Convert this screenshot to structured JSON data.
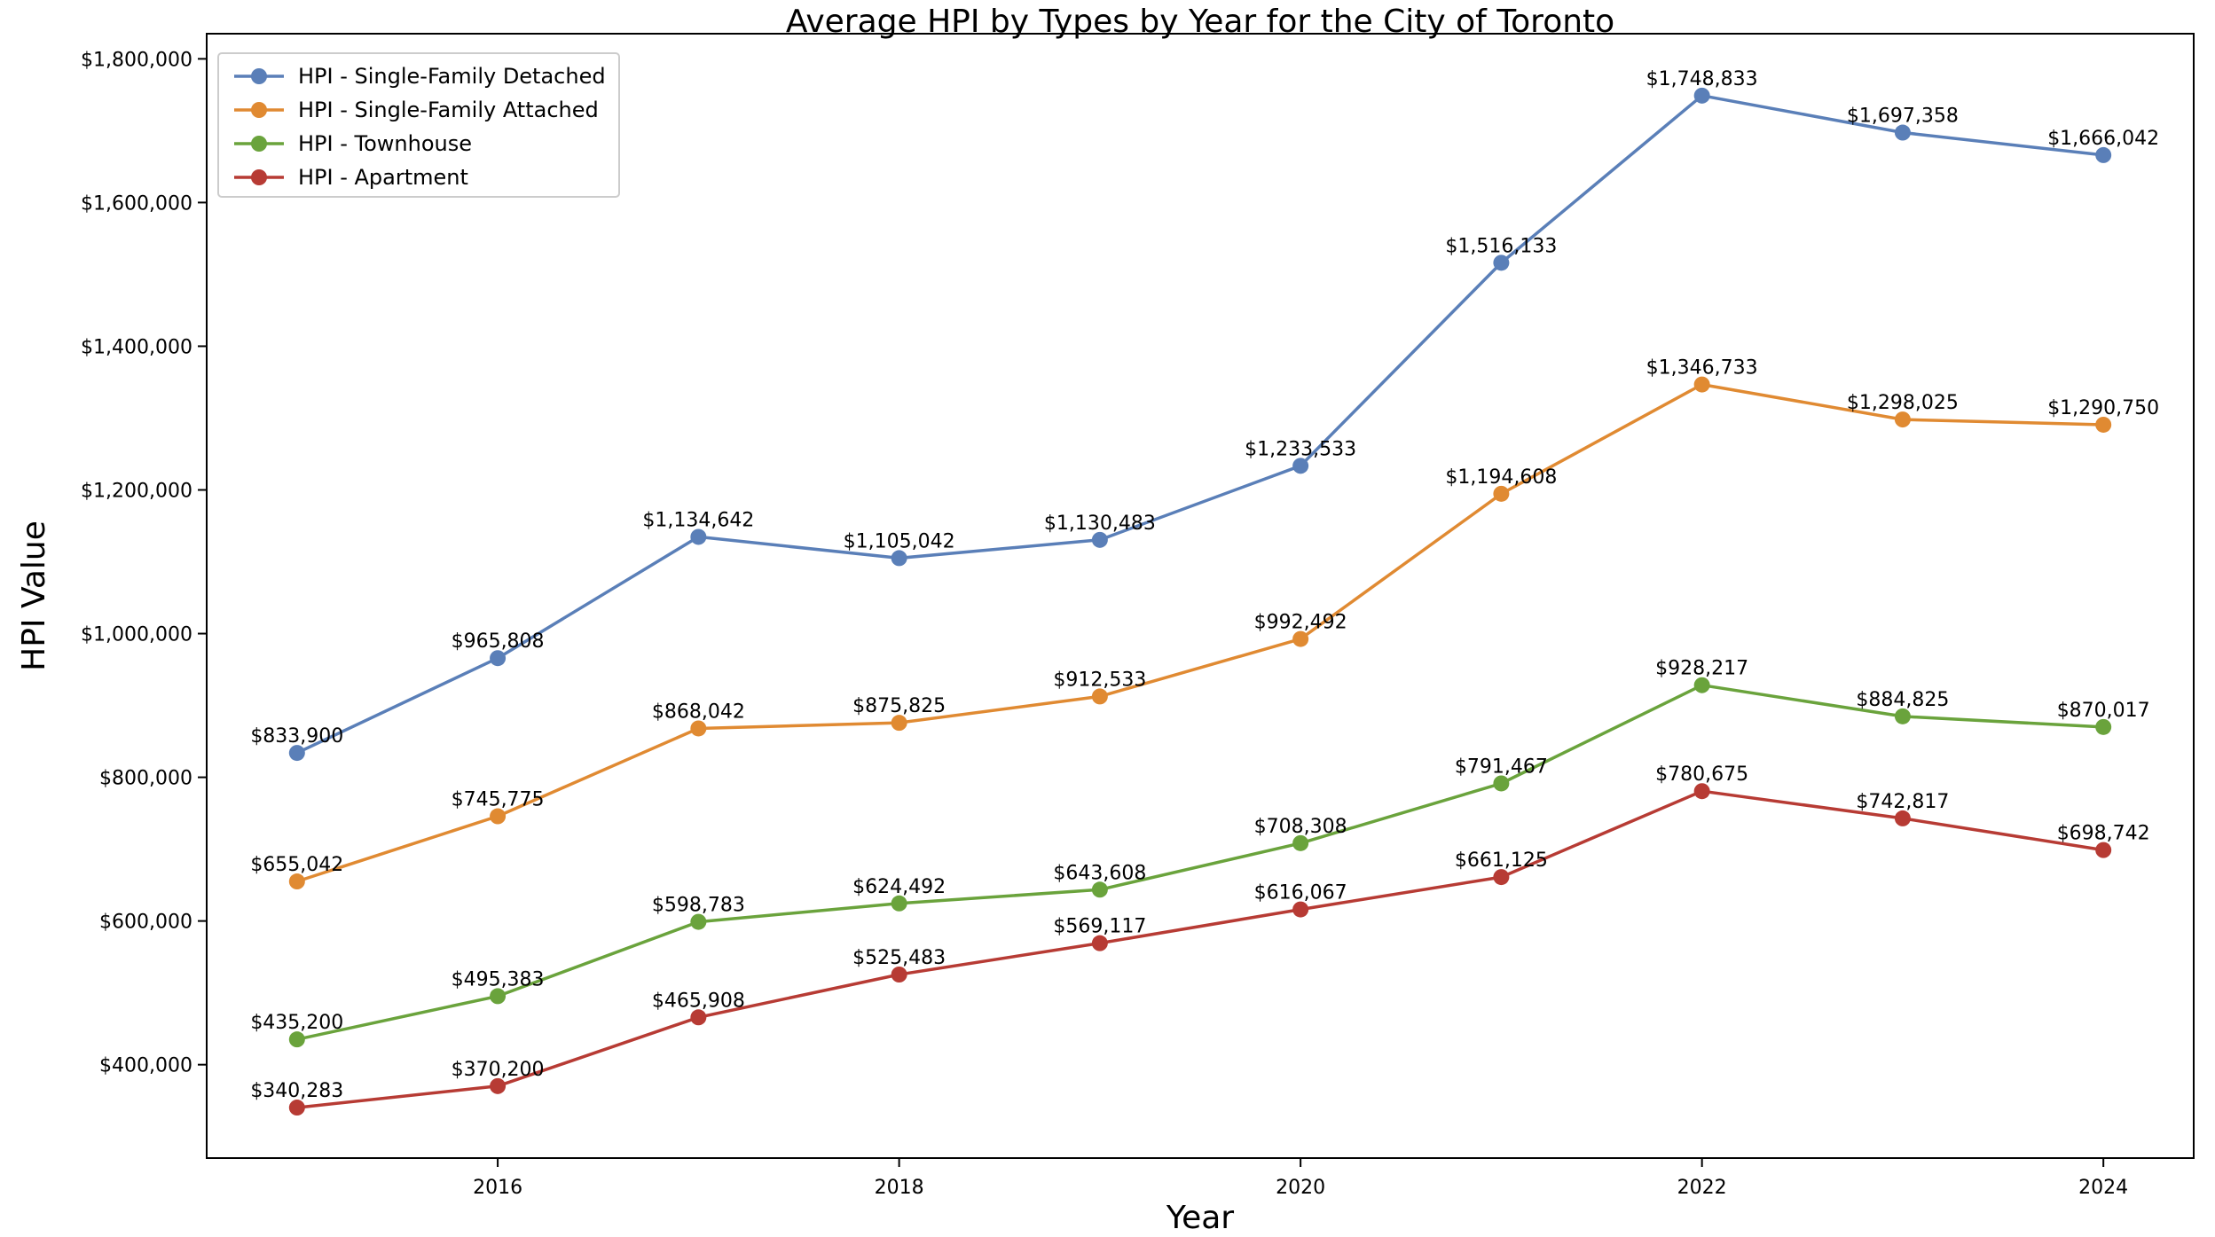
{
  "chart_data": {
    "type": "line",
    "title": "Average HPI by Types by Year for the City of Toronto",
    "xlabel": "Year",
    "ylabel": "HPI Value",
    "x": [
      2015,
      2016,
      2017,
      2018,
      2019,
      2020,
      2021,
      2022,
      2023,
      2024
    ],
    "x_ticks": [
      2016,
      2018,
      2020,
      2022,
      2024
    ],
    "x_tick_labels": [
      "2016",
      "2018",
      "2020",
      "2022",
      "2024"
    ],
    "xlim": [
      2014.55,
      2024.45
    ],
    "ylim": [
      270000,
      1835000
    ],
    "y_ticks": [
      400000,
      600000,
      800000,
      1000000,
      1200000,
      1400000,
      1600000,
      1800000
    ],
    "y_tick_labels": [
      "$400,000",
      "$600,000",
      "$800,000",
      "$1,000,000",
      "$1,200,000",
      "$1,400,000",
      "$1,600,000",
      "$1,800,000"
    ],
    "grid": false,
    "legend_position": "top-left",
    "series": [
      {
        "name": "HPI - Single-Family Detached",
        "color": "#5a7fb8",
        "values": [
          833900,
          965808,
          1134642,
          1105042,
          1130483,
          1233533,
          1516133,
          1748833,
          1697358,
          1666042
        ],
        "labels": [
          "$833,900",
          "$965,808",
          "$1,134,642",
          "$1,105,042",
          "$1,130,483",
          "$1,233,533",
          "$1,516,133",
          "$1,748,833",
          "$1,697,358",
          "$1,666,042"
        ]
      },
      {
        "name": "HPI - Single-Family Attached",
        "color": "#e08a32",
        "values": [
          655042,
          745775,
          868042,
          875825,
          912533,
          992492,
          1194608,
          1346733,
          1298025,
          1290750
        ],
        "labels": [
          "$655,042",
          "$745,775",
          "$868,042",
          "$875,825",
          "$912,533",
          "$992,492",
          "$1,194,608",
          "$1,346,733",
          "$1,298,025",
          "$1,290,750"
        ]
      },
      {
        "name": "HPI - Townhouse",
        "color": "#6aa33c",
        "values": [
          435200,
          495383,
          598783,
          624492,
          643608,
          708308,
          791467,
          928217,
          884825,
          870017
        ],
        "labels": [
          "$435,200",
          "$495,383",
          "$598,783",
          "$624,492",
          "$643,608",
          "$708,308",
          "$791,467",
          "$928,217",
          "$884,825",
          "$870,017"
        ]
      },
      {
        "name": "HPI - Apartment",
        "color": "#b73b34",
        "values": [
          340283,
          370200,
          465908,
          525483,
          569117,
          616067,
          661125,
          780675,
          742817,
          698742
        ],
        "labels": [
          "$340,283",
          "$370,200",
          "$465,908",
          "$525,483",
          "$569,117",
          "$616,067",
          "$661,125",
          "$780,675",
          "$742,817",
          "$698,742"
        ]
      }
    ]
  }
}
